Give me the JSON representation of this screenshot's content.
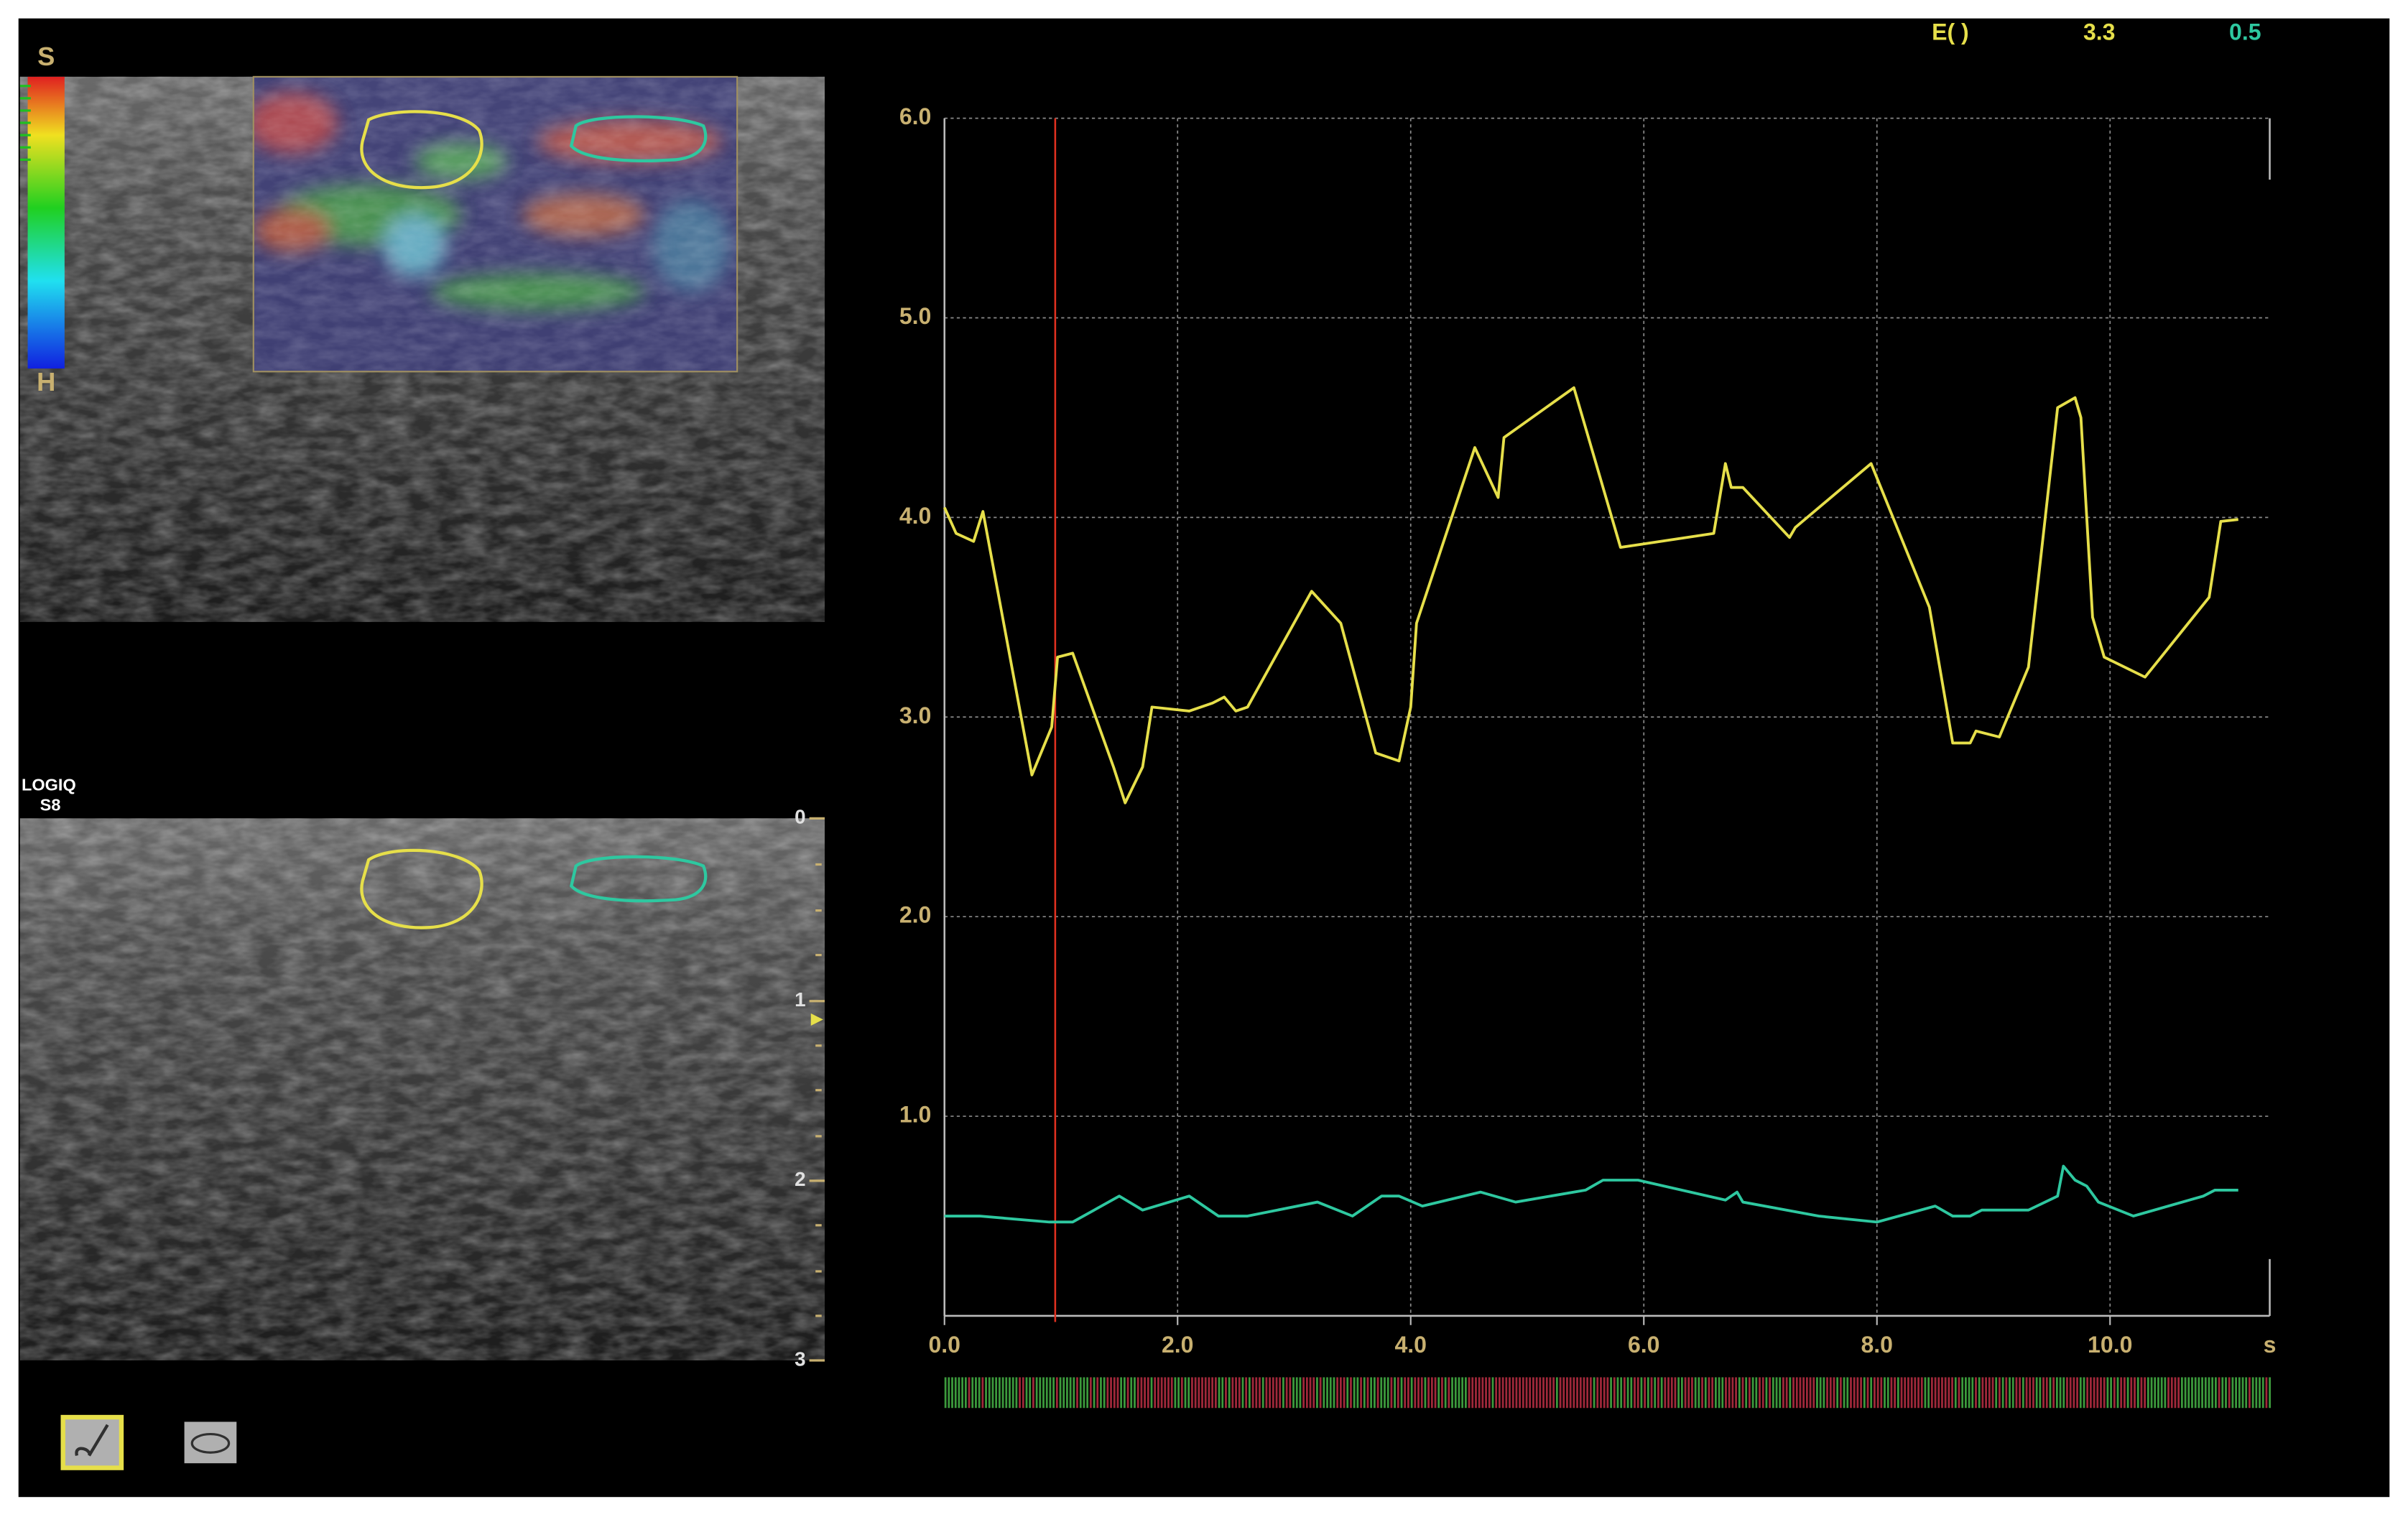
{
  "ui": {
    "scale_top": "S",
    "scale_bottom": "H",
    "device_line1": "LOGIQ",
    "device_line2": "S8",
    "depth_labels": [
      "0",
      "1",
      "2",
      "3"
    ],
    "readout_label": "E( )",
    "readout_value_1": "3.3",
    "readout_value_2": "0.5"
  },
  "chart_data": {
    "type": "line",
    "x_label": "s",
    "xlim": [
      0,
      11.37
    ],
    "ylim": [
      0,
      6
    ],
    "xticks": [
      {
        "value": 0,
        "label": "0.0"
      },
      {
        "value": 2,
        "label": "2.0"
      },
      {
        "value": 4,
        "label": "4.0"
      },
      {
        "value": 6,
        "label": "6.0"
      },
      {
        "value": 8,
        "label": "8.0"
      },
      {
        "value": 10,
        "label": "10.0"
      }
    ],
    "yticks": [
      {
        "value": 1,
        "label": "1.0"
      },
      {
        "value": 2,
        "label": "2.0"
      },
      {
        "value": 3,
        "label": "3.0"
      },
      {
        "value": 4,
        "label": "4.0"
      },
      {
        "value": 5,
        "label": "5.0"
      },
      {
        "value": 6,
        "label": "6.0"
      }
    ],
    "grid": true,
    "cursor_x": 0.95,
    "cursor_color": "#e03020",
    "series": [
      {
        "color": "#e6df4a",
        "x": [
          0.0,
          0.1,
          0.25,
          0.33,
          0.75,
          0.92,
          0.97,
          1.1,
          1.45,
          1.55,
          1.7,
          1.78,
          2.1,
          2.3,
          2.4,
          2.5,
          2.6,
          3.15,
          3.4,
          3.7,
          3.9,
          4.0,
          4.05,
          4.55,
          4.75,
          4.8,
          5.4,
          5.8,
          6.6,
          6.7,
          6.75,
          6.85,
          7.25,
          7.3,
          7.95,
          8.45,
          8.65,
          8.8,
          8.85,
          9.05,
          9.3,
          9.55,
          9.7,
          9.75,
          9.85,
          9.95,
          10.3,
          10.85,
          10.95,
          11.1
        ],
        "values": [
          4.05,
          3.92,
          3.88,
          4.03,
          2.71,
          2.95,
          3.3,
          3.32,
          2.75,
          2.57,
          2.75,
          3.05,
          3.03,
          3.07,
          3.1,
          3.03,
          3.05,
          3.63,
          3.47,
          2.82,
          2.78,
          3.05,
          3.47,
          4.35,
          4.1,
          4.4,
          4.65,
          3.85,
          3.92,
          4.27,
          4.15,
          4.15,
          3.9,
          3.95,
          4.27,
          3.55,
          2.87,
          2.87,
          2.93,
          2.9,
          3.25,
          4.55,
          4.6,
          4.5,
          3.5,
          3.3,
          3.2,
          3.6,
          3.98,
          3.99
        ]
      },
      {
        "color": "#2ec8a0",
        "x": [
          0.0,
          0.3,
          0.9,
          1.1,
          1.5,
          1.7,
          2.1,
          2.35,
          2.6,
          3.2,
          3.5,
          3.75,
          3.9,
          4.1,
          4.6,
          4.9,
          5.5,
          5.65,
          5.95,
          6.7,
          6.8,
          6.85,
          7.5,
          8.0,
          8.5,
          8.65,
          8.8,
          8.9,
          9.3,
          9.55,
          9.6,
          9.7,
          9.8,
          9.9,
          10.2,
          10.8,
          10.9,
          11.1
        ],
        "values": [
          0.5,
          0.5,
          0.47,
          0.47,
          0.6,
          0.53,
          0.6,
          0.5,
          0.5,
          0.57,
          0.5,
          0.6,
          0.6,
          0.55,
          0.62,
          0.57,
          0.63,
          0.68,
          0.68,
          0.58,
          0.62,
          0.57,
          0.5,
          0.47,
          0.55,
          0.5,
          0.5,
          0.53,
          0.53,
          0.6,
          0.75,
          0.68,
          0.65,
          0.57,
          0.5,
          0.6,
          0.63,
          0.63
        ]
      }
    ]
  }
}
